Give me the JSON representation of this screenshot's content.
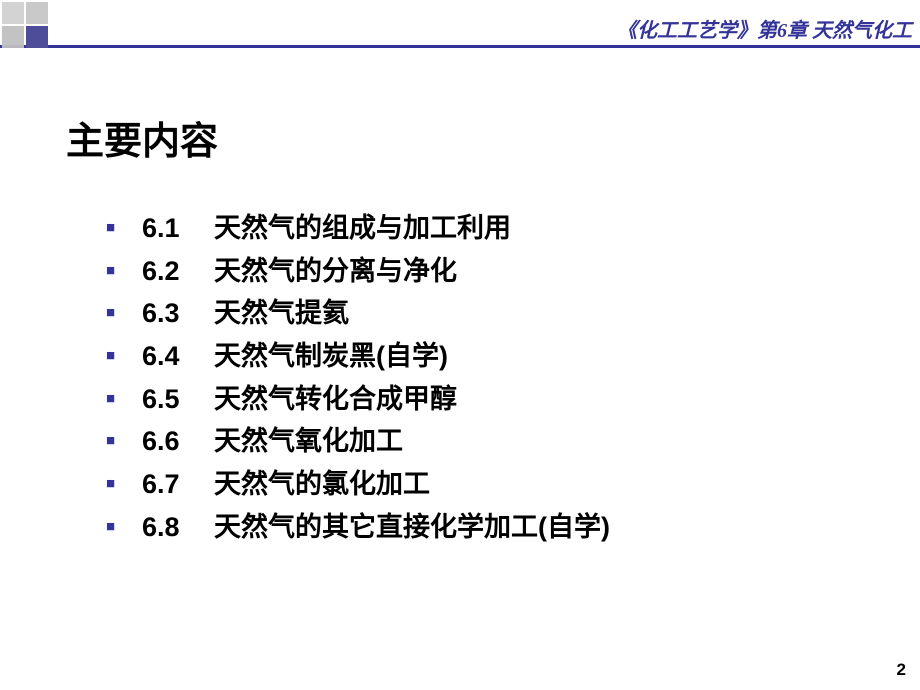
{
  "header": {
    "breadcrumb": "《化工工艺学》第6章 天然气化工",
    "accent_color": "#333399",
    "square_color": "#c0c0c0"
  },
  "content": {
    "title": "主要内容",
    "items": [
      {
        "num": "6.1",
        "text": "天然气的组成与加工利用"
      },
      {
        "num": "6.2",
        "text": "天然气的分离与净化"
      },
      {
        "num": "6.3",
        "text": "天然气提氦"
      },
      {
        "num": "6.4",
        "text": "天然气制炭黑(自学)"
      },
      {
        "num": "6.5",
        "text": "天然气转化合成甲醇"
      },
      {
        "num": "6.6",
        "text": "天然气氧化加工"
      },
      {
        "num": "6.7",
        "text": "天然气的氯化加工"
      },
      {
        "num": "6.8",
        "text": "天然气的其它直接化学加工(自学)"
      }
    ]
  },
  "footer": {
    "page_number": "2"
  },
  "style": {
    "background_color": "#ffffff",
    "title_fontsize": 38,
    "item_fontsize": 27,
    "bullet_color": "#333399",
    "text_color": "#000000"
  }
}
